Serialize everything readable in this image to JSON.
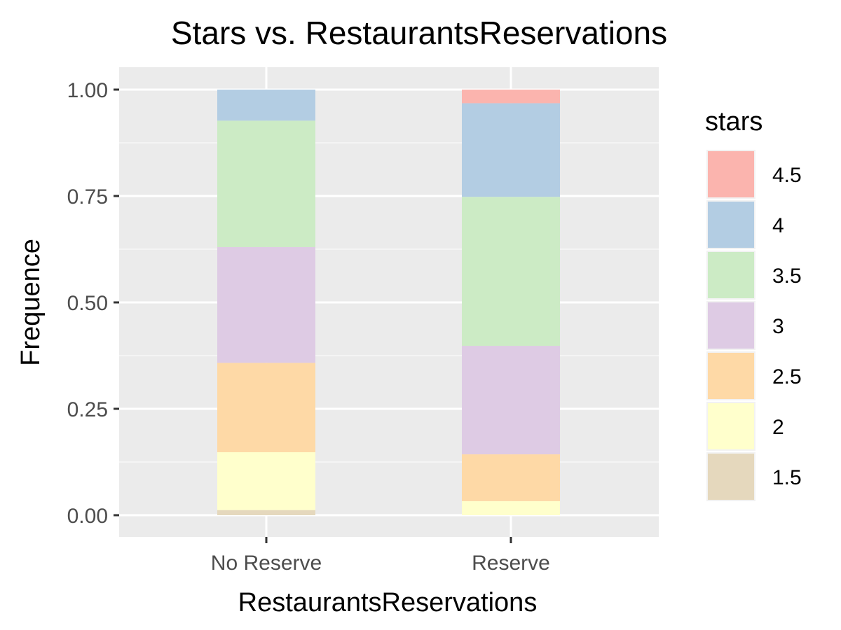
{
  "chart_data": {
    "type": "bar",
    "stacked": true,
    "title": "Stars vs. RestaurantsReservations",
    "xlabel": "RestaurantsReservations",
    "ylabel": "Frequence",
    "categories": [
      "No Reserve",
      "Reserve"
    ],
    "ylim": [
      -0.05,
      1.05
    ],
    "yticks": [
      0.0,
      0.25,
      0.5,
      0.75,
      1.0
    ],
    "ytick_labels": [
      "0.00",
      "0.25",
      "0.50",
      "0.75",
      "1.00"
    ],
    "grid": true,
    "legend": {
      "title": "stars",
      "position": "right"
    },
    "series": [
      {
        "name": "1.5",
        "color": "#E5D8BD",
        "values": [
          0.012,
          0.0
        ]
      },
      {
        "name": "2",
        "color": "#FFFFCC",
        "values": [
          0.136,
          0.033
        ]
      },
      {
        "name": "2.5",
        "color": "#FED9A6",
        "values": [
          0.21,
          0.11
        ]
      },
      {
        "name": "3",
        "color": "#DECBE4",
        "values": [
          0.272,
          0.255
        ]
      },
      {
        "name": "3.5",
        "color": "#CCEBC5",
        "values": [
          0.297,
          0.35
        ]
      },
      {
        "name": "4",
        "color": "#B3CDE3",
        "values": [
          0.073,
          0.22
        ]
      },
      {
        "name": "4.5",
        "color": "#FBB4AE",
        "values": [
          0.0,
          0.032
        ]
      }
    ]
  },
  "colors": {
    "panel_background": "#EBEBEB",
    "grid_major": "#FFFFFF",
    "grid_minor": "#F7F7F7",
    "tick_color": "#333333"
  }
}
